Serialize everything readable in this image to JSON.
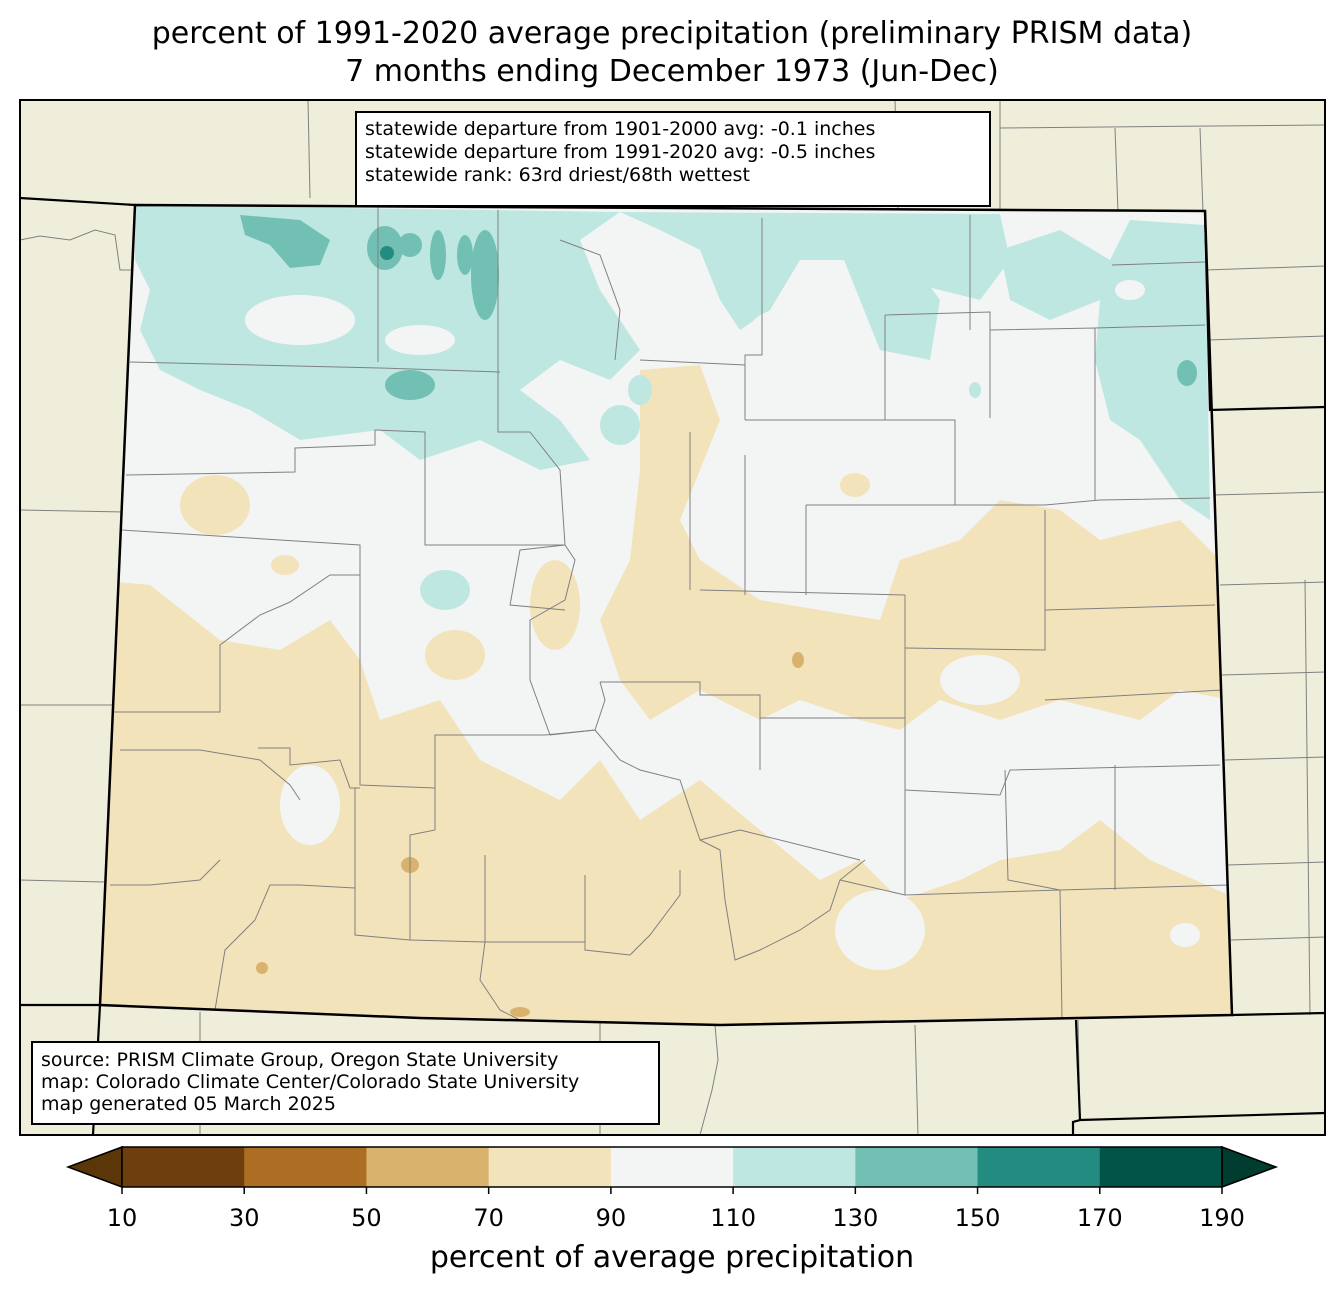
{
  "title_line1": "percent of 1991-2020 average precipitation (preliminary PRISM data)",
  "title_line2": "7 months ending December 1973 (Jun-Dec)",
  "stats": [
    "statewide departure from 1901-2000 avg: -0.1 inches",
    "statewide departure from 1991-2020 avg: -0.5 inches",
    "statewide rank: 63rd driest/68th wettest"
  ],
  "credits": [
    "source: PRISM Climate Group, Oregon State University",
    "map: Colorado Climate Center/Colorado State University",
    "map generated 05 March 2025"
  ],
  "colorbar": {
    "label": "percent of average precipitation",
    "ticks": [
      "10",
      "30",
      "50",
      "70",
      "90",
      "110",
      "130",
      "150",
      "170",
      "190"
    ],
    "colors": [
      "#6e3f0c",
      "#ab6e23",
      "#d9b36e",
      "#f3e3bb",
      "#f3f5f4",
      "#bfe7e1",
      "#72c0b3",
      "#238b80",
      "#015446"
    ],
    "under_color": "#5a3608",
    "over_color": "#003c30"
  },
  "colors": {
    "land_background": "#efeedb",
    "state_border": "#000000",
    "county_lines": "#808080"
  }
}
